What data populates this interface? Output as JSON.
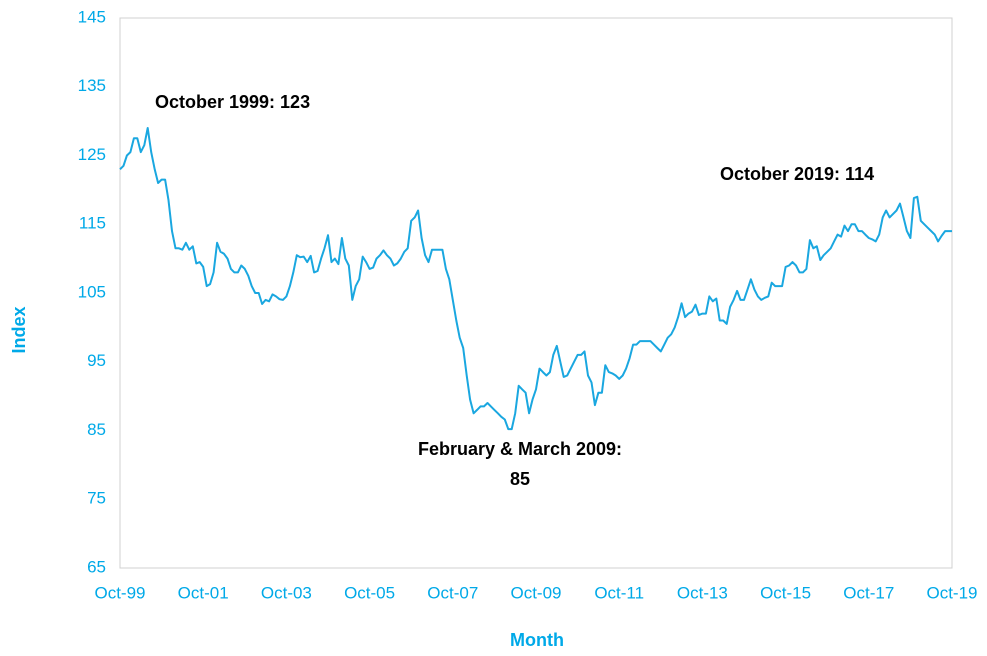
{
  "chart_data": {
    "type": "line",
    "x_label": "Month",
    "y_label": "Index",
    "annotations": [
      "October 1999: 123",
      "October 2019: 114",
      "February & March 2009:",
      "85"
    ],
    "categories": [
      "Oct-99",
      null,
      null,
      null,
      null,
      null,
      null,
      null,
      null,
      null,
      null,
      null,
      null,
      null,
      null,
      null,
      null,
      null,
      null,
      null,
      null,
      null,
      null,
      null,
      "Oct-01",
      null,
      null,
      null,
      null,
      null,
      null,
      null,
      null,
      null,
      null,
      null,
      null,
      null,
      null,
      null,
      null,
      null,
      null,
      null,
      null,
      null,
      null,
      null,
      "Oct-03",
      null,
      null,
      null,
      null,
      null,
      null,
      null,
      null,
      null,
      null,
      null,
      null,
      null,
      null,
      null,
      null,
      null,
      null,
      null,
      null,
      null,
      null,
      null,
      "Oct-05",
      null,
      null,
      null,
      null,
      null,
      null,
      null,
      null,
      null,
      null,
      null,
      null,
      null,
      null,
      null,
      null,
      null,
      null,
      null,
      null,
      null,
      null,
      null,
      "Oct-07",
      null,
      null,
      null,
      null,
      null,
      null,
      null,
      null,
      null,
      null,
      null,
      null,
      null,
      null,
      null,
      null,
      null,
      null,
      null,
      null,
      null,
      null,
      null,
      "Oct-09",
      null,
      null,
      null,
      null,
      null,
      null,
      null,
      null,
      null,
      null,
      null,
      null,
      null,
      null,
      null,
      null,
      null,
      null,
      null,
      null,
      null,
      null,
      null,
      "Oct-11",
      null,
      null,
      null,
      null,
      null,
      null,
      null,
      null,
      null,
      null,
      null,
      null,
      null,
      null,
      null,
      null,
      null,
      null,
      null,
      null,
      null,
      null,
      null,
      "Oct-13",
      null,
      null,
      null,
      null,
      null,
      null,
      null,
      null,
      null,
      null,
      null,
      null,
      null,
      null,
      null,
      null,
      null,
      null,
      null,
      null,
      null,
      null,
      null,
      "Oct-15",
      null,
      null,
      null,
      null,
      null,
      null,
      null,
      null,
      null,
      null,
      null,
      null,
      null,
      null,
      null,
      null,
      null,
      null,
      null,
      null,
      null,
      null,
      null,
      "Oct-17",
      null,
      null,
      null,
      null,
      null,
      null,
      null,
      null,
      null,
      null,
      null,
      null,
      null,
      null,
      null,
      null,
      null,
      null,
      null,
      null,
      null,
      null,
      null,
      "Oct-19"
    ],
    "series": [
      {
        "color": "#1aa7e0",
        "values": [
          123,
          123.5,
          125,
          125.5,
          127.5,
          127.5,
          125.5,
          126.5,
          129,
          125.5,
          123,
          121,
          121.5,
          121.5,
          118.5,
          114,
          111.5,
          111.5,
          111.3,
          112.3,
          111.3,
          111.8,
          109.3,
          109.5,
          108.8,
          106,
          106.3,
          108,
          112.3,
          111,
          110.7,
          110,
          108.5,
          108,
          108,
          109,
          108.5,
          107.5,
          106,
          105,
          105,
          103.4,
          104,
          103.8,
          104.8,
          104.5,
          104.1,
          104,
          104.5,
          106,
          108,
          110.5,
          110.2,
          110.3,
          109.5,
          110.4,
          108,
          108.2,
          110,
          111.5,
          113.4,
          109.5,
          110,
          109.2,
          113,
          110,
          109,
          104,
          106,
          107,
          110.3,
          109.5,
          108.5,
          108.7,
          110,
          110.5,
          111.2,
          110.5,
          110,
          109,
          109.3,
          110,
          111,
          111.5,
          115.5,
          116,
          117,
          113,
          110.5,
          109.5,
          111.3,
          111.3,
          111.3,
          111.3,
          108.5,
          107,
          104,
          101,
          98.5,
          97,
          93,
          89.5,
          87.5,
          88,
          88.5,
          88.5,
          89,
          88.5,
          88,
          87.5,
          87,
          86.6,
          85.2,
          85.2,
          87.5,
          91.5,
          91,
          90.5,
          87.5,
          89.5,
          91,
          94,
          93.5,
          93,
          93.5,
          96,
          97.3,
          95,
          92.8,
          93,
          94,
          95,
          96,
          96,
          96.5,
          93,
          92,
          88.7,
          90.5,
          90.5,
          94.5,
          93.5,
          93.3,
          93,
          92.5,
          93,
          94,
          95.5,
          97.5,
          97.5,
          98,
          98,
          98,
          98,
          97.5,
          97,
          96.5,
          97.5,
          98.5,
          99,
          100,
          101.5,
          103.5,
          101.5,
          102,
          102.3,
          103.3,
          101.8,
          102,
          102,
          104.5,
          103.8,
          104.2,
          101,
          101,
          100.5,
          103,
          104,
          105.3,
          104,
          104,
          105.5,
          107,
          105.5,
          104.5,
          104,
          104.3,
          104.5,
          106.5,
          106,
          106,
          106,
          108.8,
          109,
          109.5,
          109,
          108,
          108,
          108.5,
          112.7,
          111.5,
          111.8,
          109.8,
          110.5,
          111,
          111.5,
          112.5,
          113.5,
          113.2,
          114.8,
          114,
          115,
          115,
          114,
          114,
          113.5,
          113,
          112.8,
          112.5,
          113.5,
          116,
          117,
          116,
          116.5,
          117,
          118,
          116,
          114,
          113,
          118.8,
          119,
          115.5,
          115,
          114.5,
          114,
          113.5,
          112.5,
          113.3,
          114,
          114,
          114
        ]
      }
    ],
    "ylim": [
      65,
      145
    ],
    "yticks": [
      65,
      75,
      85,
      95,
      105,
      115,
      125,
      135,
      145
    ],
    "grid": false
  }
}
